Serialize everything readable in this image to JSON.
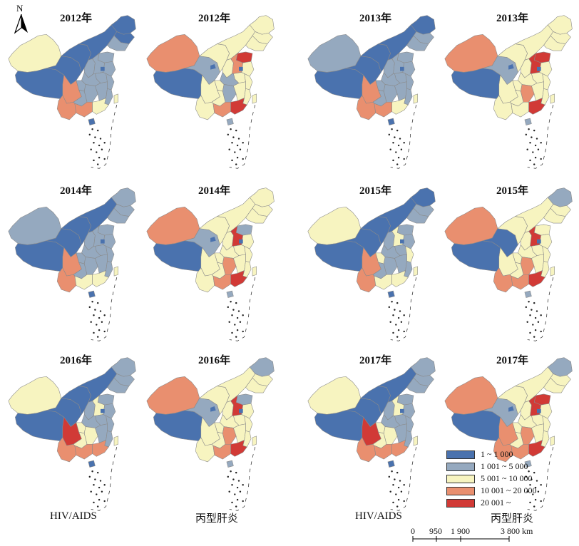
{
  "north_arrow": {
    "label": "N"
  },
  "colors": {
    "c1": "#4a72ae",
    "c2": "#95a9bf",
    "c3": "#f7f4c0",
    "c4": "#e98f6f",
    "c5": "#d13a36",
    "outline": "#8a8a8a",
    "lake": "#4a72ae"
  },
  "legend": {
    "items": [
      {
        "label": "1 ~ 1 000",
        "color": "#4a72ae"
      },
      {
        "label": "1 001 ~ 5 000",
        "color": "#95a9bf"
      },
      {
        "label": "5 001 ~ 10 000",
        "color": "#f7f4c0"
      },
      {
        "label": "10 001 ~ 20 000",
        "color": "#e98f6f"
      },
      {
        "label": "20 001 ~",
        "color": "#d13a36"
      }
    ]
  },
  "captions": {
    "left_hiv": "HIV/AIDS",
    "left_hcv": "丙型肝炎",
    "right_hiv": "HIV/AIDS",
    "right_hcv": "丙型肝炎"
  },
  "scale_bar": {
    "ticks": [
      "0",
      "950",
      "1 900",
      "3 800 km"
    ]
  },
  "maps": [
    {
      "title": "2012年",
      "disease": "HIV/AIDS",
      "regions": {
        "xj": "c3",
        "xz": "c1",
        "qh": "c1",
        "gs": "c1",
        "nm": "c1",
        "hlj": "c1",
        "jl": "c1",
        "ln": "c2",
        "sc": "c4",
        "yn": "c4",
        "gx": "c4",
        "gz": "c2",
        "cq": "c2",
        "sn": "c2",
        "hn": "c2",
        "hb": "c2",
        "sd": "c2",
        "js": "c2",
        "zj": "c2",
        "ah": "c2",
        "jx": "c2",
        "fj": "c2",
        "gd": "c3",
        "hen": "c2",
        "hainan": "c1",
        "tw": "c3"
      }
    },
    {
      "title": "2012年",
      "disease": "丙型肝炎",
      "regions": {
        "xj": "c4",
        "xz": "c1",
        "qh": "c2",
        "gs": "c3",
        "nm": "c3",
        "hlj": "c3",
        "jl": "c3",
        "ln": "c3",
        "sc": "c3",
        "yn": "c3",
        "gx": "c4",
        "gz": "c3",
        "cq": "c3",
        "sn": "c3",
        "hn": "c2",
        "hb": "c2",
        "sd": "c5",
        "js": "c3",
        "zj": "c3",
        "ah": "c3",
        "jx": "c3",
        "fj": "c3",
        "gd": "c5",
        "hen": "c4",
        "hainan": "c2",
        "tw": "c3"
      }
    },
    {
      "title": "2013年",
      "disease": "HIV/AIDS",
      "regions": {
        "xj": "c2",
        "xz": "c1",
        "qh": "c1",
        "gs": "c1",
        "nm": "c1",
        "hlj": "c1",
        "jl": "c2",
        "ln": "c2",
        "sc": "c4",
        "yn": "c4",
        "gx": "c4",
        "gz": "c2",
        "cq": "c2",
        "sn": "c2",
        "hn": "c2",
        "hb": "c2",
        "sd": "c2",
        "js": "c2",
        "zj": "c2",
        "ah": "c2",
        "jx": "c2",
        "fj": "c2",
        "gd": "c3",
        "hen": "c2",
        "hainan": "c1",
        "tw": "c3"
      }
    },
    {
      "title": "2013年",
      "disease": "丙型肝炎",
      "regions": {
        "xj": "c4",
        "xz": "c1",
        "qh": "c2",
        "gs": "c3",
        "nm": "c3",
        "hlj": "c3",
        "jl": "c3",
        "ln": "c3",
        "sc": "c3",
        "yn": "c3",
        "gx": "c3",
        "gz": "c3",
        "cq": "c3",
        "sn": "c3",
        "hn": "c4",
        "hb": "c3",
        "sd": "c5",
        "js": "c3",
        "zj": "c3",
        "ah": "c3",
        "jx": "c3",
        "fj": "c3",
        "gd": "c5",
        "hen": "c5",
        "hainan": "c2",
        "tw": "c3"
      }
    },
    {
      "title": "2014年",
      "disease": "HIV/AIDS",
      "regions": {
        "xj": "c2",
        "xz": "c1",
        "qh": "c1",
        "gs": "c1",
        "nm": "c1",
        "hlj": "c2",
        "jl": "c2",
        "ln": "c2",
        "sc": "c4",
        "yn": "c4",
        "gx": "c3",
        "gz": "c2",
        "cq": "c2",
        "sn": "c2",
        "hn": "c2",
        "hb": "c2",
        "sd": "c2",
        "js": "c2",
        "zj": "c2",
        "ah": "c2",
        "jx": "c2",
        "fj": "c2",
        "gd": "c3",
        "hen": "c2",
        "hainan": "c1",
        "tw": "c3"
      }
    },
    {
      "title": "2014年",
      "disease": "丙型肝炎",
      "regions": {
        "xj": "c4",
        "xz": "c1",
        "qh": "c2",
        "gs": "c3",
        "nm": "c3",
        "hlj": "c3",
        "jl": "c3",
        "ln": "c3",
        "sc": "c3",
        "yn": "c3",
        "gx": "c4",
        "gz": "c3",
        "cq": "c3",
        "sn": "c3",
        "hn": "c4",
        "hb": "c3",
        "sd": "c2",
        "js": "c3",
        "zj": "c3",
        "ah": "c3",
        "jx": "c3",
        "fj": "c3",
        "gd": "c5",
        "hen": "c5",
        "hainan": "c2",
        "tw": "c3"
      }
    },
    {
      "title": "2015年",
      "disease": "HIV/AIDS",
      "regions": {
        "xj": "c3",
        "xz": "c1",
        "qh": "c1",
        "gs": "c1",
        "nm": "c1",
        "hlj": "c1",
        "jl": "c2",
        "ln": "c2",
        "sc": "c4",
        "yn": "c4",
        "gx": "c3",
        "gz": "c2",
        "cq": "c3",
        "sn": "c2",
        "hn": "c2",
        "hb": "c2",
        "sd": "c2",
        "js": "c2",
        "zj": "c3",
        "ah": "c2",
        "jx": "c2",
        "fj": "c2",
        "gd": "c3",
        "hen": "c3",
        "hainan": "c1",
        "tw": "c3"
      }
    },
    {
      "title": "2015年",
      "disease": "丙型肝炎",
      "regions": {
        "xj": "c4",
        "xz": "c1",
        "qh": "c1",
        "gs": "c3",
        "nm": "c3",
        "hlj": "c2",
        "jl": "c3",
        "ln": "c3",
        "sc": "c3",
        "yn": "c4",
        "gx": "c4",
        "gz": "c3",
        "cq": "c3",
        "sn": "c3",
        "hn": "c4",
        "hb": "c3",
        "sd": "c3",
        "js": "c3",
        "zj": "c3",
        "ah": "c3",
        "jx": "c3",
        "fj": "c3",
        "gd": "c5",
        "hen": "c5",
        "hainan": "c2",
        "tw": "c3"
      }
    },
    {
      "title": "2016年",
      "disease": "HIV/AIDS",
      "regions": {
        "xj": "c3",
        "xz": "c1",
        "qh": "c1",
        "gs": "c1",
        "nm": "c1",
        "hlj": "c2",
        "jl": "c2",
        "ln": "c2",
        "sc": "c5",
        "yn": "c4",
        "gx": "c4",
        "gz": "c3",
        "cq": "c3",
        "sn": "c2",
        "hn": "c3",
        "hb": "c2",
        "sd": "c2",
        "js": "c2",
        "zj": "c2",
        "ah": "c2",
        "jx": "c2",
        "fj": "c2",
        "gd": "c4",
        "hen": "c3",
        "hainan": "c1",
        "tw": "c3"
      }
    },
    {
      "title": "2016年",
      "disease": "丙型肝炎",
      "regions": {
        "xj": "c4",
        "xz": "c1",
        "qh": "c2",
        "gs": "c3",
        "nm": "c3",
        "hlj": "c2",
        "jl": "c3",
        "ln": "c3",
        "sc": "c3",
        "yn": "c3",
        "gx": "c4",
        "gz": "c3",
        "cq": "c3",
        "sn": "c3",
        "hn": "c4",
        "hb": "c3",
        "sd": "c2",
        "js": "c3",
        "zj": "c3",
        "ah": "c3",
        "jx": "c3",
        "fj": "c3",
        "gd": "c5",
        "hen": "c5",
        "hainan": "c2",
        "tw": "c3"
      }
    },
    {
      "title": "2017年",
      "disease": "HIV/AIDS",
      "regions": {
        "xj": "c3",
        "xz": "c1",
        "qh": "c1",
        "gs": "c1",
        "nm": "c1",
        "hlj": "c2",
        "jl": "c2",
        "ln": "c2",
        "sc": "c5",
        "yn": "c4",
        "gx": "c4",
        "gz": "c3",
        "cq": "c3",
        "sn": "c2",
        "hn": "c3",
        "hb": "c2",
        "sd": "c2",
        "js": "c2",
        "zj": "c2",
        "ah": "c2",
        "jx": "c2",
        "fj": "c2",
        "gd": "c4",
        "hen": "c3",
        "hainan": "c1",
        "tw": "c3"
      }
    },
    {
      "title": "2017年",
      "disease": "丙型肝炎",
      "regions": {
        "xj": "c4",
        "xz": "c1",
        "qh": "c2",
        "gs": "c3",
        "nm": "c3",
        "hlj": "c2",
        "jl": "c3",
        "ln": "c3",
        "sc": "c4",
        "yn": "c4",
        "gx": "c4",
        "gz": "c3",
        "cq": "c3",
        "sn": "c3",
        "hn": "c4",
        "hb": "c3",
        "sd": "c5",
        "js": "c3",
        "zj": "c3",
        "ah": "c3",
        "jx": "c3",
        "fj": "c3",
        "gd": "c5",
        "hen": "c5",
        "hainan": "c2",
        "tw": "c3"
      }
    }
  ]
}
